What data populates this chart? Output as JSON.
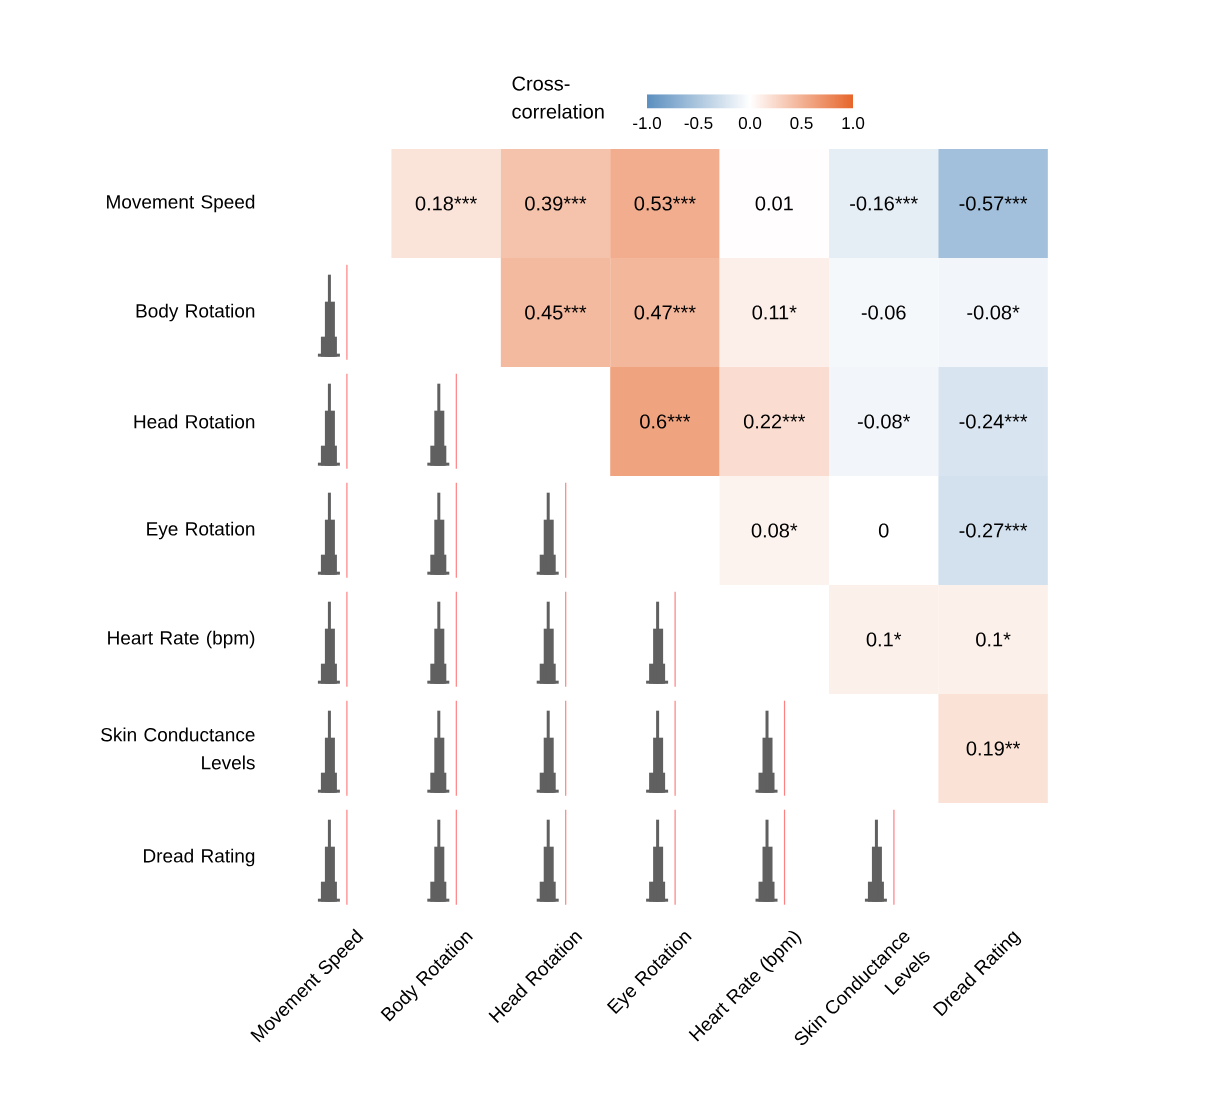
{
  "chart_data": {
    "type": "heatmap",
    "legend_title": "Cross-correlation",
    "categories": [
      "Movement Speed",
      "Body Rotation",
      "Head Rotation",
      "Eye Rotation",
      "Heart Rate (bpm)",
      "Skin Conductance Levels",
      "Dread Rating"
    ],
    "y_categories": [
      "Movement Speed",
      "Body Rotation",
      "Head Rotation",
      "Eye Rotation",
      "Heart Rate (bpm)",
      "Skin Conductance Levels",
      "Dread Rating"
    ],
    "cells": [
      [
        null,
        0.18,
        0.39,
        0.53,
        0.01,
        -0.16,
        -0.57
      ],
      [
        null,
        null,
        0.45,
        0.47,
        0.11,
        -0.06,
        -0.08
      ],
      [
        null,
        null,
        null,
        0.6,
        0.22,
        -0.08,
        -0.24
      ],
      [
        null,
        null,
        null,
        null,
        0.08,
        0,
        -0.27
      ],
      [
        null,
        null,
        null,
        null,
        null,
        0.1,
        0.1
      ],
      [
        null,
        null,
        null,
        null,
        null,
        null,
        0.19
      ],
      [
        null,
        null,
        null,
        null,
        null,
        null,
        null
      ]
    ],
    "cell_labels": [
      [
        null,
        "0.18***",
        "0.39***",
        "0.53***",
        "0.01",
        "-0.16***",
        "-0.57***"
      ],
      [
        null,
        null,
        "0.45***",
        "0.47***",
        "0.11*",
        "-0.06",
        "-0.08*"
      ],
      [
        null,
        null,
        null,
        "0.6***",
        "0.22***",
        "-0.08*",
        "-0.24***"
      ],
      [
        null,
        null,
        null,
        null,
        "0.08*",
        "0",
        "-0.27***"
      ],
      [
        null,
        null,
        null,
        null,
        null,
        "0.1*",
        "0.1*"
      ],
      [
        null,
        null,
        null,
        null,
        null,
        null,
        "0.19**"
      ],
      [
        null,
        null,
        null,
        null,
        null,
        null,
        null
      ]
    ],
    "clim": [
      -1.0,
      1.0
    ],
    "cticks": [
      {
        "value": -1.0,
        "label": "-1.0"
      },
      {
        "value": -0.5,
        "label": "-0.5"
      },
      {
        "value": 0.0,
        "label": "0.0"
      },
      {
        "value": 0.5,
        "label": "0.5"
      },
      {
        "value": 1.0,
        "label": "1.0"
      }
    ]
  }
}
